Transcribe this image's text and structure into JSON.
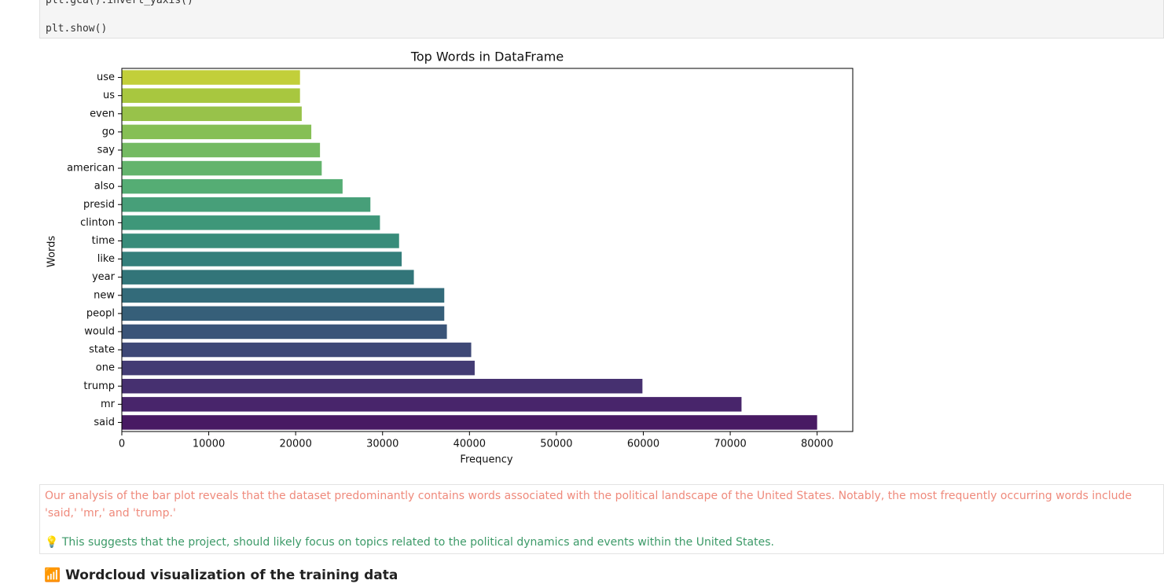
{
  "code": {
    "lines": [
      "plt.gca().invert_yaxis()",
      "plt.show()"
    ]
  },
  "chart_data": {
    "type": "bar",
    "orientation": "horizontal",
    "title": "Top Words in DataFrame",
    "x_label": "Frequency",
    "y_label": "Words",
    "categories": [
      "use",
      "us",
      "even",
      "go",
      "say",
      "american",
      "also",
      "presid",
      "clinton",
      "time",
      "like",
      "year",
      "new",
      "peopl",
      "would",
      "state",
      "one",
      "trump",
      "mr",
      "said"
    ],
    "values": [
      20500,
      20500,
      20700,
      21800,
      22800,
      23000,
      25400,
      28600,
      29700,
      31900,
      32200,
      33600,
      37100,
      37100,
      37400,
      40200,
      40600,
      59900,
      71300,
      80000
    ],
    "colors": [
      "#c2cf3a",
      "#a8c73f",
      "#98c24a",
      "#86bf55",
      "#74ba62",
      "#64b46d",
      "#55ad74",
      "#479f79",
      "#3e9779",
      "#388c7a",
      "#347f7b",
      "#327579",
      "#336b7a",
      "#365f79",
      "#3a5478",
      "#3e4876",
      "#433c74",
      "#463070",
      "#48256b",
      "#481a63"
    ],
    "xlim": [
      0,
      84100
    ],
    "xticks": [
      0,
      10000,
      20000,
      30000,
      40000,
      50000,
      60000,
      70000,
      80000
    ]
  },
  "markdown": {
    "observation": "Our analysis of the bar plot reveals that the dataset predominantly contains words associated with the political landscape of the United States. Notably, the most frequently occurring words include 'said,' 'mr,' and 'trump.'",
    "suggestion": "💡 This suggests that the project, should likely focus on topics related to the political dynamics and events within the United States.",
    "heading": "📶 Wordcloud visualization of the training data"
  }
}
